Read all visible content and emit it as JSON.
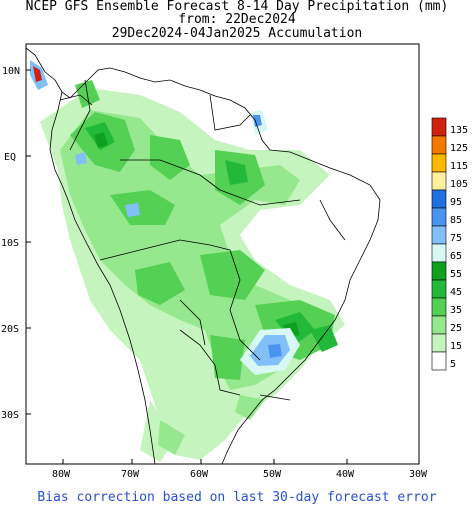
{
  "title": {
    "line1": "NCEP GFS Ensemble Forecast 8-14 Day Precipitation (mm)",
    "line2": "from: 22Dec2024",
    "line3": "29Dec2024-04Jan2025 Accumulation"
  },
  "axes": {
    "lat_labels": [
      "10N",
      "EQ",
      "10S",
      "20S",
      "30S"
    ],
    "lon_labels": [
      "80W",
      "70W",
      "60W",
      "50W",
      "40W",
      "30W"
    ]
  },
  "legend": {
    "labels": [
      "135",
      "125",
      "115",
      "105",
      "95",
      "85",
      "75",
      "65",
      "55",
      "45",
      "35",
      "25",
      "15",
      "5"
    ],
    "colors": [
      "#d02010",
      "#f57800",
      "#ffb800",
      "#fff0a0",
      "#2070e0",
      "#4a94f0",
      "#82bff8",
      "#d8f8f4",
      "#10a020",
      "#22b83a",
      "#54d054",
      "#96e88e",
      "#c6f4be",
      "#ffffff"
    ]
  },
  "footer": "Bias correction based on last 30-day forecast error"
}
